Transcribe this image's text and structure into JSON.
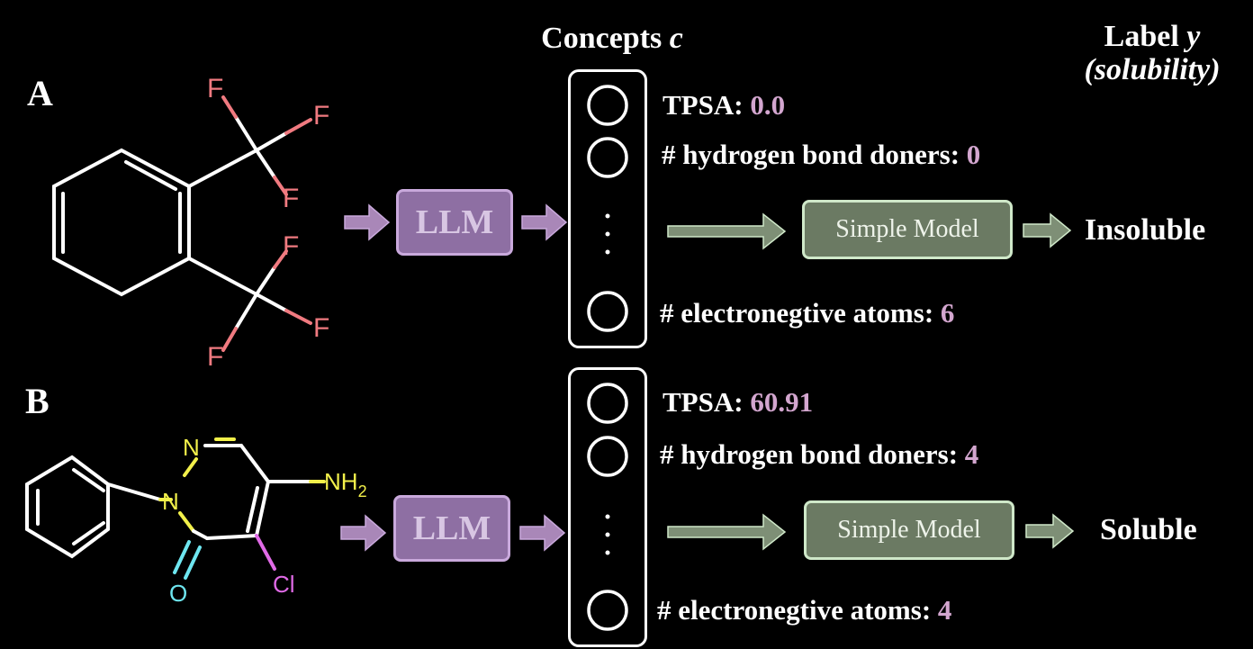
{
  "headers": {
    "concepts_label": "Concepts ",
    "concepts_var": "c",
    "label_label": "Label ",
    "label_var": "y",
    "label_sub": "(solubility)"
  },
  "panels": [
    {
      "letter": "A",
      "llm_label": "LLM",
      "model_label": "Simple Model",
      "result": "Insoluble",
      "atoms": {
        "f1": "F",
        "f2": "F",
        "f3": "F",
        "f4": "F",
        "f5": "F",
        "f6": "F"
      },
      "concepts": [
        {
          "name": "TPSA: ",
          "value": "0.0"
        },
        {
          "name": "# hydrogen bond doners: ",
          "value": "0"
        },
        {
          "name": "# electronegtive atoms: ",
          "value": "6"
        }
      ]
    },
    {
      "letter": "B",
      "llm_label": "LLM",
      "model_label": "Simple Model",
      "result": "Soluble",
      "atoms": {
        "n1": "N",
        "n2": "N",
        "nh": "NH",
        "nh_sub": "2",
        "o": "O",
        "cl": "Cl"
      },
      "concepts": [
        {
          "name": "TPSA: ",
          "value": "60.91"
        },
        {
          "name": "# hydrogen bond doners: ",
          "value": "4"
        },
        {
          "name": "# electronegtive atoms: ",
          "value": "4"
        }
      ]
    }
  ],
  "colors": {
    "llm_fill": "#8e6fa3",
    "llm_arrow": "#a987b8",
    "model_fill": "#6b7a63",
    "model_arrow": "#7e8f76",
    "value_text": "#d3a6cf",
    "fluorine": "#f07a80",
    "nitrogen": "#f2f04a",
    "oxygen": "#6ee6f0",
    "chlorine": "#e06ae6"
  }
}
